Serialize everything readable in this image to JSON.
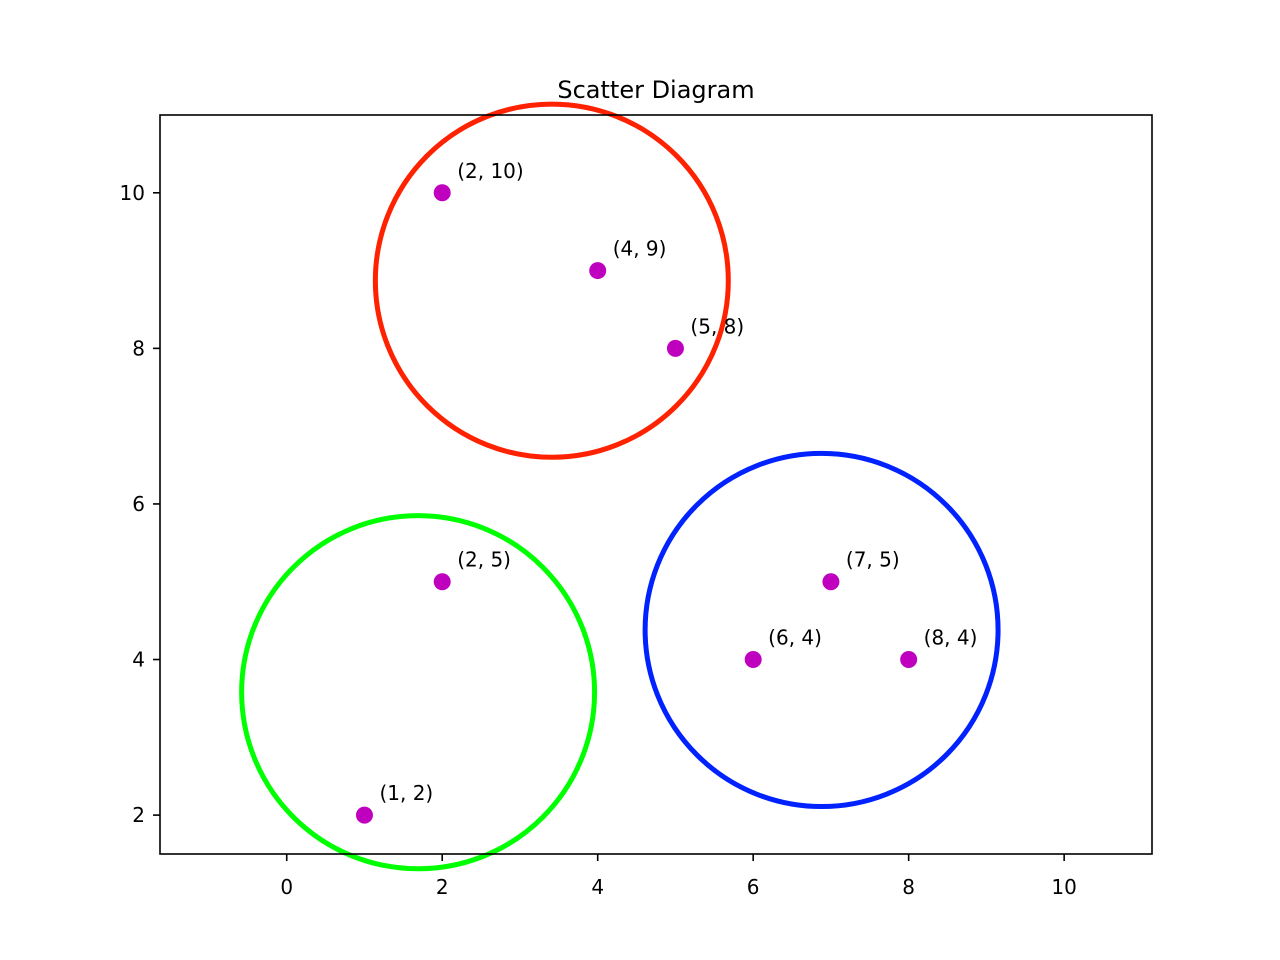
{
  "chart_data": {
    "type": "scatter",
    "title": "Scatter Diagram",
    "xlabel": "",
    "ylabel": "",
    "xlim": [
      -1.63,
      11.13
    ],
    "ylim": [
      1.5,
      11.0
    ],
    "xticks": [
      0,
      2,
      4,
      6,
      8,
      10
    ],
    "yticks": [
      2,
      4,
      6,
      8,
      10
    ],
    "grid": false,
    "point_color": "#bf00bf",
    "points": [
      {
        "x": 2,
        "y": 10,
        "label": "(2, 10)"
      },
      {
        "x": 4,
        "y": 9,
        "label": "(4, 9)"
      },
      {
        "x": 5,
        "y": 8,
        "label": "(5, 8)"
      },
      {
        "x": 2,
        "y": 5,
        "label": "(2, 5)"
      },
      {
        "x": 1,
        "y": 2,
        "label": "(1, 2)"
      },
      {
        "x": 7,
        "y": 5,
        "label": "(7, 5)"
      },
      {
        "x": 6,
        "y": 4,
        "label": "(6, 4)"
      },
      {
        "x": 8,
        "y": 4,
        "label": "(8, 4)"
      }
    ],
    "circles": [
      {
        "cx": 3.41,
        "cy": 8.87,
        "rx": 2.27,
        "ry": 2.27,
        "color": "#ff2200"
      },
      {
        "cx": 1.69,
        "cy": 3.58,
        "rx": 2.27,
        "ry": 2.27,
        "color": "#00ff00"
      },
      {
        "cx": 6.88,
        "cy": 4.38,
        "rx": 2.27,
        "ry": 2.27,
        "color": "#0022ff"
      }
    ]
  }
}
